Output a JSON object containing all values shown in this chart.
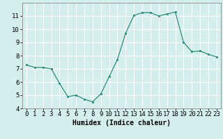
{
  "x": [
    0,
    1,
    2,
    3,
    4,
    5,
    6,
    7,
    8,
    9,
    10,
    11,
    12,
    13,
    14,
    15,
    16,
    17,
    18,
    19,
    20,
    21,
    22,
    23
  ],
  "y": [
    7.3,
    7.1,
    7.1,
    7.0,
    5.9,
    4.9,
    5.0,
    4.7,
    4.5,
    5.1,
    6.4,
    7.7,
    9.7,
    11.05,
    11.25,
    11.25,
    11.0,
    11.15,
    11.3,
    9.0,
    8.3,
    8.35,
    8.1,
    7.9
  ],
  "xlabel": "Humidex (Indice chaleur)",
  "ylim": [
    4,
    12
  ],
  "xlim_left": -0.5,
  "xlim_right": 23.5,
  "yticks": [
    4,
    5,
    6,
    7,
    8,
    9,
    10,
    11
  ],
  "xticks": [
    0,
    1,
    2,
    3,
    4,
    5,
    6,
    7,
    8,
    9,
    10,
    11,
    12,
    13,
    14,
    15,
    16,
    17,
    18,
    19,
    20,
    21,
    22,
    23
  ],
  "line_color": "#2d8b7a",
  "marker_color": "#2d8b7a",
  "bg_color": "#d4eeee",
  "grid_color": "#ffffff",
  "xlabel_fontsize": 7,
  "tick_fontsize": 6.5
}
